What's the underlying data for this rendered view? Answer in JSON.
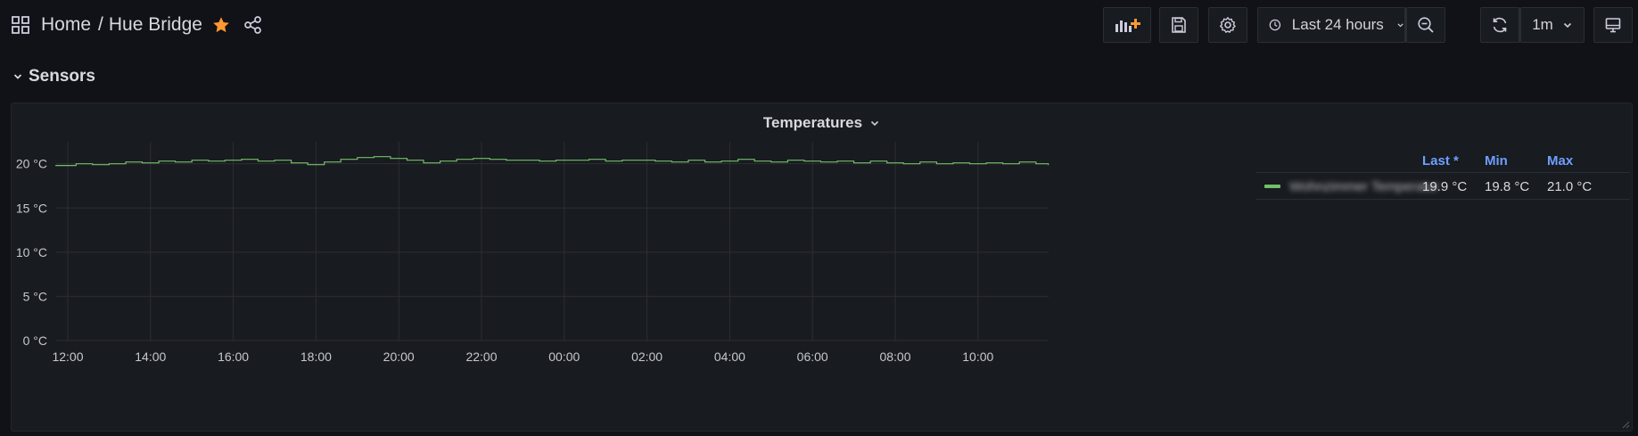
{
  "breadcrumb": {
    "home": "Home",
    "separator": "/",
    "title": "Hue Bridge"
  },
  "toolbar": {
    "time_range": "Last 24 hours",
    "refresh_interval": "1m"
  },
  "row": {
    "title": "Sensors"
  },
  "panel": {
    "title": "Temperatures"
  },
  "legend": {
    "headers": {
      "last": "Last *",
      "min": "Min",
      "max": "Max"
    },
    "series": [
      {
        "name": "Wohnzimmer Temperatur",
        "last": "19.9 °C",
        "min": "19.8 °C",
        "max": "21.0 °C"
      }
    ]
  },
  "colors": {
    "series": "#73bf69",
    "accent_text": "#6e9fff",
    "star": "#ff9830"
  },
  "chart_data": {
    "type": "line",
    "title": "Temperatures",
    "yunit": "°C",
    "ylim": [
      0,
      24
    ],
    "yticks": [
      "20 °C",
      "15 °C",
      "10 °C",
      "5 °C",
      "0 °C"
    ],
    "ytick_values": [
      20,
      15,
      10,
      5,
      0
    ],
    "xticks": [
      "12:00",
      "14:00",
      "16:00",
      "18:00",
      "20:00",
      "22:00",
      "00:00",
      "02:00",
      "04:00",
      "06:00",
      "08:00",
      "10:00"
    ],
    "grid": true,
    "legend_placement": "right",
    "series": [
      {
        "name": "Wohnzimmer Temperatur",
        "x_hours": [
          -0.3,
          0.2,
          0.6,
          1.0,
          1.4,
          1.8,
          2.2,
          2.6,
          3.0,
          3.4,
          3.8,
          4.2,
          4.6,
          5.0,
          5.4,
          5.8,
          6.2,
          6.6,
          7.0,
          7.4,
          7.8,
          8.2,
          8.6,
          9.0,
          9.4,
          9.8,
          10.2,
          10.6,
          11.0,
          11.4,
          11.8,
          12.2,
          12.6,
          13.0,
          13.4,
          13.8,
          14.2,
          14.6,
          15.0,
          15.4,
          15.8,
          16.2,
          16.6,
          17.0,
          17.4,
          17.8,
          18.2,
          18.6,
          19.0,
          19.4,
          19.8,
          20.2,
          20.6,
          21.0,
          21.4,
          21.8,
          22.2,
          22.6,
          23.0,
          23.4,
          23.7
        ],
        "values": [
          19.8,
          20.0,
          19.9,
          20.0,
          20.2,
          20.1,
          20.3,
          20.2,
          20.4,
          20.3,
          20.4,
          20.5,
          20.3,
          20.4,
          20.1,
          19.9,
          20.2,
          20.5,
          20.7,
          20.8,
          20.6,
          20.4,
          20.1,
          20.3,
          20.5,
          20.6,
          20.5,
          20.4,
          20.4,
          20.3,
          20.4,
          20.4,
          20.5,
          20.3,
          20.4,
          20.4,
          20.3,
          20.2,
          20.4,
          20.2,
          20.3,
          20.5,
          20.3,
          20.2,
          20.4,
          20.3,
          20.2,
          20.3,
          20.1,
          20.3,
          20.1,
          20.0,
          20.2,
          20.0,
          20.1,
          20.0,
          20.1,
          20.0,
          20.2,
          20.0,
          19.9
        ]
      }
    ]
  }
}
